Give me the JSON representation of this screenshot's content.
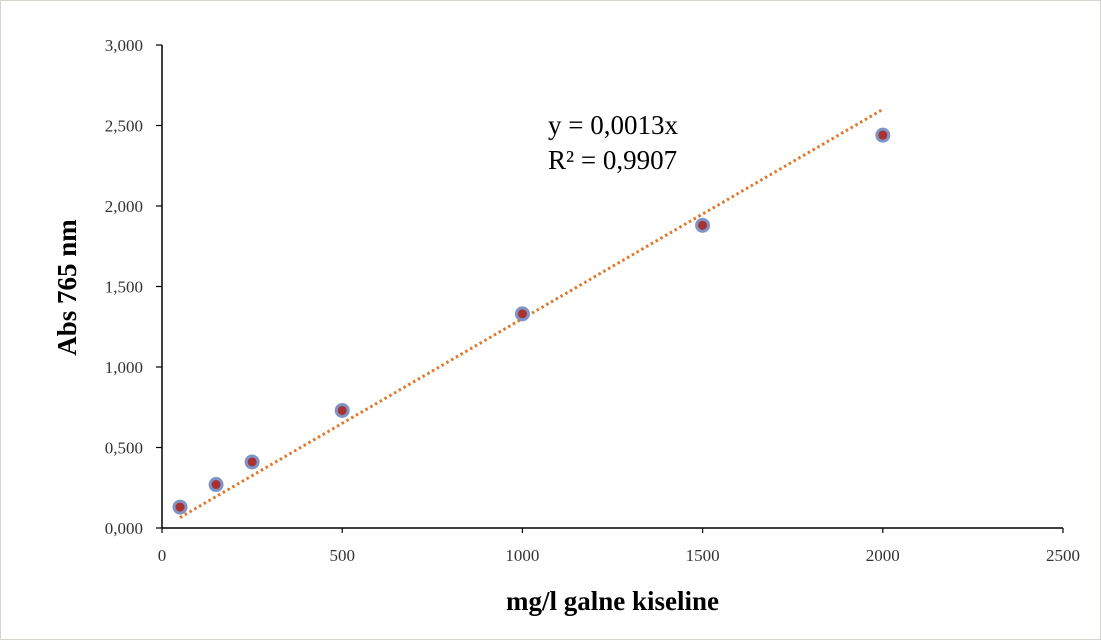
{
  "chart_data": {
    "type": "scatter",
    "title": "",
    "xlabel": "mg/l galne kiseline",
    "ylabel": "Abs 765 nm",
    "xlim": [
      0,
      2500
    ],
    "ylim": [
      0,
      3.0
    ],
    "x_ticks": [
      0,
      500,
      1000,
      1500,
      2000,
      2500
    ],
    "x_tick_labels": [
      "0",
      "500",
      "1000",
      "1500",
      "2000",
      "2500"
    ],
    "y_ticks": [
      0,
      0.5,
      1.0,
      1.5,
      2.0,
      2.5,
      3.0
    ],
    "y_tick_labels": [
      "0,000",
      "0,500",
      "1,000",
      "1,500",
      "2,000",
      "2,500",
      "3,000"
    ],
    "grid": false,
    "legend": "none",
    "series": [
      {
        "x": [
          50,
          150,
          250,
          500,
          1000,
          1500,
          2000
        ],
        "y": [
          0.13,
          0.27,
          0.41,
          0.73,
          1.33,
          1.88,
          2.44
        ],
        "marker_fill": "#a83232",
        "marker_edge": "#7f93c4"
      }
    ],
    "trendline": {
      "type": "linear",
      "slope": 0.0013,
      "intercept": 0,
      "x_range": [
        50,
        2000
      ],
      "color": "#e0772a",
      "style": "dotted"
    },
    "annotations": {
      "equation": "y = 0,0013x",
      "r_squared": "R² = 0,9907"
    }
  }
}
